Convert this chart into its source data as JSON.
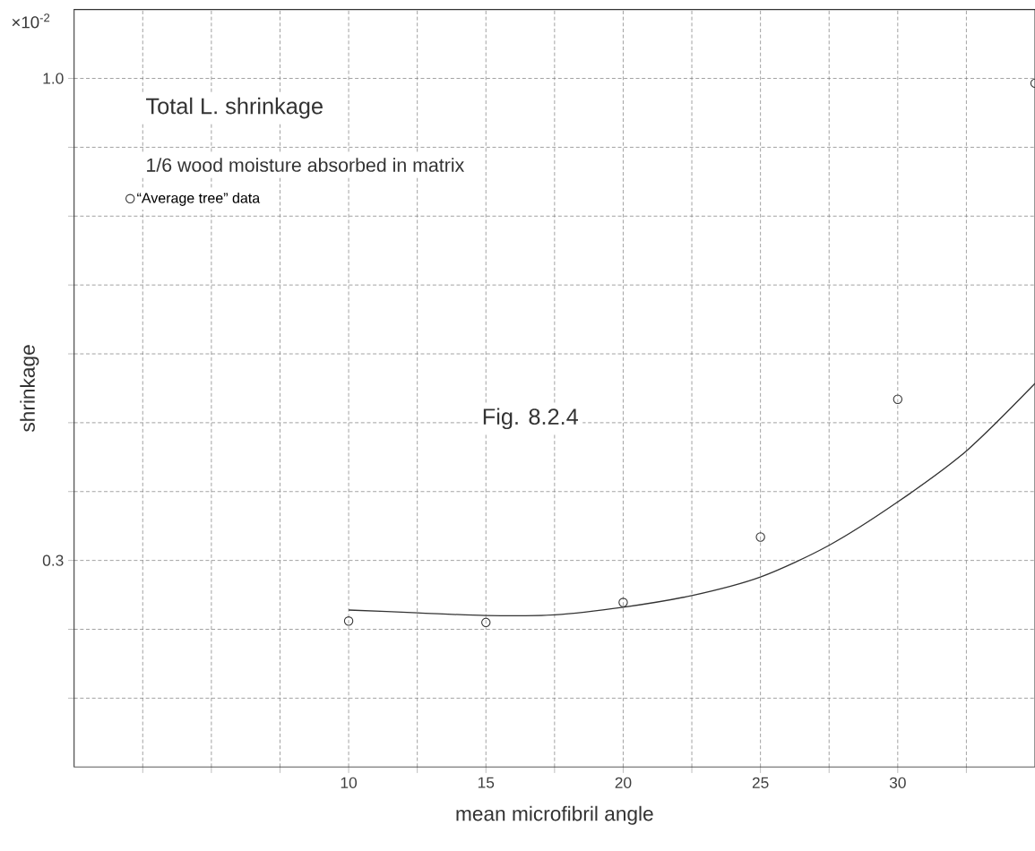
{
  "chart_data": {
    "type": "scatter",
    "xlabel": "mean microfibril angle",
    "ylabel": "shrinkage",
    "xlim": [
      0,
      35
    ],
    "ylim": [
      0,
      1.1
    ],
    "xticks": [
      {
        "value": 2.5,
        "label": null
      },
      {
        "value": 5,
        "label": null
      },
      {
        "value": 7.5,
        "label": null
      },
      10,
      {
        "value": 12.5,
        "label": null
      },
      15,
      {
        "value": 17.5,
        "label": null
      },
      20,
      {
        "value": 22.5,
        "label": null
      },
      25,
      {
        "value": 27.5,
        "label": null
      },
      30,
      {
        "value": 32.5,
        "label": null
      }
    ],
    "yticks": [
      {
        "value": 0.1,
        "label": null
      },
      {
        "value": 0.2,
        "label": null
      },
      {
        "value": 0.3,
        "label": "0.3"
      },
      {
        "value": 0.4,
        "label": null
      },
      {
        "value": 0.5,
        "label": null
      },
      {
        "value": 0.6,
        "label": null
      },
      {
        "value": 0.7,
        "label": null
      },
      {
        "value": 0.8,
        "label": null
      },
      {
        "value": 0.9,
        "label": null
      },
      {
        "value": 1.0,
        "label": "1.0"
      }
    ],
    "grid": true,
    "legend": "top left",
    "marker": "circle",
    "annotations": [
      "×10$^{-2}$",
      "Total L. shrinkage",
      "1/6 wood moisture absorbed in matrix",
      "Fig. 8.2.4"
    ],
    "series": [
      {
        "name": "“Average tree” data",
        "color": "#333333",
        "x": [
          10,
          15,
          20,
          25,
          30,
          35
        ],
        "values": [
          0.212,
          0.21,
          0.239,
          0.334,
          0.534,
          0.993
        ]
      },
      {
        "type": "line",
        "marker": "none",
        "color": "#333333",
        "x": [
          10,
          12.5,
          15,
          17.5,
          20,
          22.5,
          25,
          27.5,
          30,
          32.5,
          35
        ],
        "values": [
          0.228,
          0.224,
          0.22,
          0.221,
          0.232,
          0.249,
          0.276,
          0.322,
          0.385,
          0.459,
          0.557
        ]
      }
    ]
  }
}
